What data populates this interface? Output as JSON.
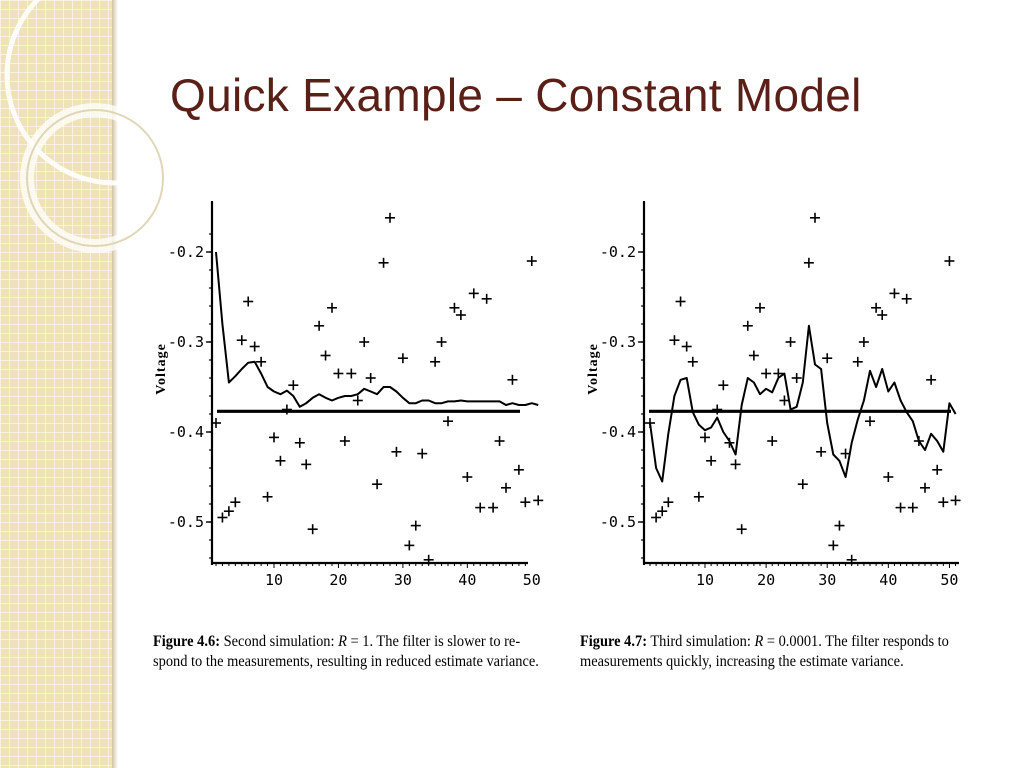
{
  "slide": {
    "title": "Quick Example – Constant Model"
  },
  "chart_data": [
    {
      "type": "line",
      "figure_label": "Figure 4.6:",
      "caption_pre": " Second simulation: ",
      "caption_var": "R",
      "caption_eq": " = ",
      "caption_val": "1",
      "caption_line1_rest": ". The filter is slower to re-",
      "caption_line2": "spond to the measurements, resulting in reduced estimate variance.",
      "ylabel": "Voltage",
      "xlim": [
        1,
        51
      ],
      "ylim": [
        -0.56,
        -0.155
      ],
      "xticks": [
        10,
        20,
        30,
        40,
        50
      ],
      "yticks": [
        -0.2,
        -0.3,
        -0.4,
        -0.5
      ],
      "ytick_labels": [
        "-0.2",
        "-0.3",
        "-0.4",
        "-0.5"
      ],
      "true_value": -0.377,
      "measurements": [
        -0.39,
        -0.495,
        -0.488,
        -0.478,
        -0.298,
        -0.255,
        -0.305,
        -0.322,
        -0.472,
        -0.406,
        -0.432,
        -0.375,
        -0.348,
        -0.412,
        -0.436,
        -0.508,
        -0.282,
        -0.315,
        -0.262,
        -0.335,
        -0.41,
        -0.335,
        -0.365,
        -0.3,
        -0.34,
        -0.458,
        -0.212,
        -0.162,
        -0.422,
        -0.318,
        -0.526,
        -0.504,
        -0.424,
        -0.542,
        -0.322,
        -0.3,
        -0.388,
        -0.262,
        -0.27,
        -0.45,
        -0.246,
        -0.484,
        -0.252,
        -0.484,
        -0.41,
        -0.462,
        -0.342,
        -0.442,
        -0.478,
        -0.21,
        -0.476
      ],
      "estimate": [
        -0.2,
        -0.28,
        -0.345,
        -0.338,
        -0.33,
        -0.323,
        -0.322,
        -0.335,
        -0.35,
        -0.355,
        -0.358,
        -0.354,
        -0.36,
        -0.372,
        -0.368,
        -0.362,
        -0.358,
        -0.362,
        -0.365,
        -0.362,
        -0.36,
        -0.36,
        -0.358,
        -0.352,
        -0.355,
        -0.358,
        -0.35,
        -0.35,
        -0.355,
        -0.362,
        -0.368,
        -0.368,
        -0.365,
        -0.365,
        -0.368,
        -0.368,
        -0.366,
        -0.366,
        -0.365,
        -0.366,
        -0.366,
        -0.366,
        -0.366,
        -0.366,
        -0.366,
        -0.37,
        -0.368,
        -0.37,
        -0.37,
        -0.368,
        -0.37
      ]
    },
    {
      "type": "line",
      "figure_label": "Figure 4.7:",
      "caption_pre": " Third simulation: ",
      "caption_var": "R",
      "caption_eq": " = ",
      "caption_val": "0.0001",
      "caption_line1_rest": ". The filter responds to",
      "caption_line2": "measurements quickly, increasing the estimate variance.",
      "ylabel": "Voltage",
      "xlim": [
        1,
        51
      ],
      "ylim": [
        -0.56,
        -0.155
      ],
      "xticks": [
        10,
        20,
        30,
        40,
        50
      ],
      "yticks": [
        -0.2,
        -0.3,
        -0.4,
        -0.5
      ],
      "ytick_labels": [
        "-0.2",
        "-0.3",
        "-0.4",
        "-0.5"
      ],
      "true_value": -0.377,
      "measurements": [
        -0.39,
        -0.495,
        -0.488,
        -0.478,
        -0.298,
        -0.255,
        -0.305,
        -0.322,
        -0.472,
        -0.406,
        -0.432,
        -0.375,
        -0.348,
        -0.412,
        -0.436,
        -0.508,
        -0.282,
        -0.315,
        -0.262,
        -0.335,
        -0.41,
        -0.335,
        -0.365,
        -0.3,
        -0.34,
        -0.458,
        -0.212,
        -0.162,
        -0.422,
        -0.318,
        -0.526,
        -0.504,
        -0.424,
        -0.542,
        -0.322,
        -0.3,
        -0.388,
        -0.262,
        -0.27,
        -0.45,
        -0.246,
        -0.484,
        -0.252,
        -0.484,
        -0.41,
        -0.462,
        -0.342,
        -0.442,
        -0.478,
        -0.21,
        -0.476
      ],
      "estimate": [
        -0.39,
        -0.44,
        -0.455,
        -0.402,
        -0.36,
        -0.342,
        -0.34,
        -0.378,
        -0.392,
        -0.398,
        -0.395,
        -0.384,
        -0.4,
        -0.41,
        -0.425,
        -0.37,
        -0.34,
        -0.345,
        -0.358,
        -0.352,
        -0.356,
        -0.34,
        -0.335,
        -0.375,
        -0.372,
        -0.345,
        -0.282,
        -0.325,
        -0.33,
        -0.39,
        -0.425,
        -0.432,
        -0.45,
        -0.412,
        -0.386,
        -0.365,
        -0.332,
        -0.35,
        -0.33,
        -0.355,
        -0.345,
        -0.365,
        -0.378,
        -0.388,
        -0.41,
        -0.42,
        -0.402,
        -0.41,
        -0.422,
        -0.368,
        -0.38
      ]
    }
  ]
}
